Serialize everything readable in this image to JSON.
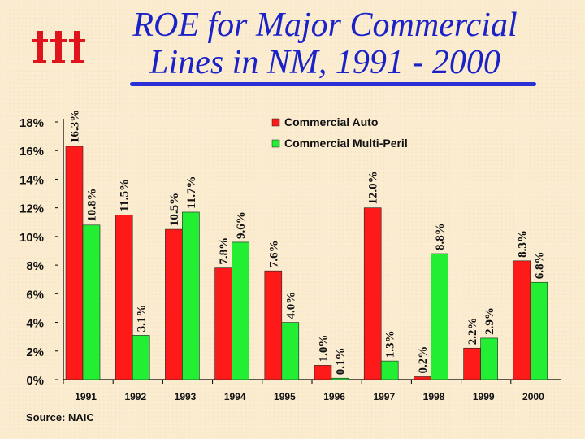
{
  "header": {
    "title_line1": "ROE for Major Commercial",
    "title_line2": "Lines in NM, 1991 - 2000",
    "title_color": "#1a22c8",
    "logo_icon": "iii-logo-icon",
    "logo_color": "#e0141c"
  },
  "footer": {
    "source": "Source: NAIC"
  },
  "chart_data": {
    "type": "bar",
    "categories": [
      "1991",
      "1992",
      "1993",
      "1994",
      "1995",
      "1996",
      "1997",
      "1998",
      "1999",
      "2000"
    ],
    "series": [
      {
        "name": "Commercial Auto",
        "color": "#ff1a1a",
        "values": [
          16.3,
          11.5,
          10.5,
          7.8,
          7.6,
          1.0,
          12.0,
          0.2,
          2.2,
          8.3
        ],
        "labels": [
          "16.3%",
          "11.5%",
          "10.5%",
          "7.8%",
          "7.6%",
          "1.0%",
          "12.0%",
          "0.2%",
          "2.2%",
          "8.3%"
        ]
      },
      {
        "name": "Commercial Multi-Peril",
        "color": "#22ee33",
        "values": [
          10.8,
          3.1,
          11.7,
          9.6,
          4.0,
          0.1,
          1.3,
          8.8,
          2.9,
          6.8
        ],
        "labels": [
          "10.8%",
          "3.1%",
          "11.7%",
          "9.6%",
          "4.0%",
          "0.1%",
          "1.3%",
          "8.8%",
          "2.9%",
          "6.8%"
        ]
      }
    ],
    "y_ticks": [
      "0%",
      "2%",
      "4%",
      "6%",
      "8%",
      "10%",
      "12%",
      "14%",
      "16%",
      "18%"
    ],
    "ylim": [
      0,
      18
    ],
    "legend_position": "top-right",
    "grid": false
  }
}
